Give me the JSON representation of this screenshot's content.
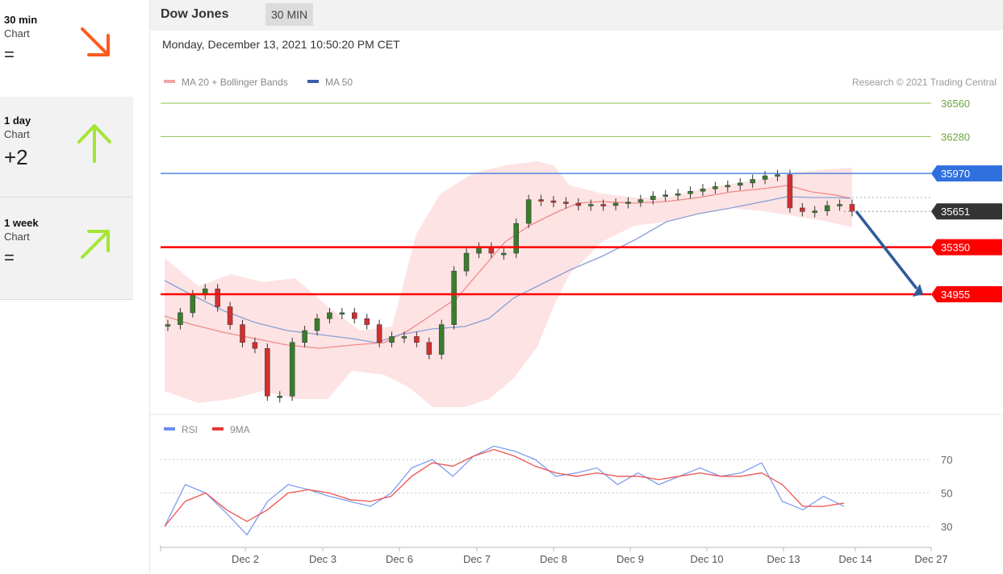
{
  "sidebar": {
    "items": [
      {
        "name": "30 min",
        "sub": "Chart",
        "score": "=",
        "arrow": "down-right-arrow-icon",
        "color": "#ff5a1f"
      },
      {
        "name": "1 day",
        "sub": "Chart",
        "score": "+2",
        "arrow": "up-arrow-icon",
        "color": "#a3e635"
      },
      {
        "name": "1 week",
        "sub": "Chart",
        "score": "=",
        "arrow": "up-right-arrow-icon",
        "color": "#a3e635"
      }
    ]
  },
  "header": {
    "title": "Dow Jones",
    "timeframe": "30 MIN",
    "datetime": "Monday, December 13, 2021 10:50:20 PM CET"
  },
  "legend": {
    "ma20": "MA 20 + Bollinger Bands",
    "ma50": "MA 50",
    "credit": "Research © 2021 Trading Central",
    "rsi": "RSI",
    "ma9": "9MA"
  },
  "chart_data": {
    "type": "candlestick",
    "x_labels": [
      "Dec 2",
      "Dec 3",
      "Dec 6",
      "Dec 7",
      "Dec 8",
      "Dec 9",
      "Dec 10",
      "Dec 13",
      "Dec 14",
      "Dec 27"
    ],
    "price_levels": [
      {
        "value": 36560,
        "label": "36560",
        "kind": "resistance-target",
        "color": "#8bc34a"
      },
      {
        "value": 36280,
        "label": "36280",
        "kind": "resistance-target",
        "color": "#8bc34a"
      },
      {
        "value": 35970,
        "label": "35970",
        "kind": "pivot",
        "color": "#2f6fde"
      },
      {
        "value": 35651,
        "label": "35651",
        "kind": "last-price",
        "color": "#333333"
      },
      {
        "value": 35350,
        "label": "35350",
        "kind": "support-target",
        "color": "#ff0000"
      },
      {
        "value": 34955,
        "label": "34955",
        "kind": "support-target",
        "color": "#ff0000"
      }
    ],
    "price_path": [
      34700,
      34800,
      34950,
      35000,
      34850,
      34700,
      34550,
      34500,
      34100,
      34100,
      34550,
      34650,
      34750,
      34800,
      34800,
      34750,
      34700,
      34550,
      34600,
      34600,
      34550,
      34450,
      34700,
      35150,
      35300,
      35350,
      35300,
      35300,
      35550,
      35750,
      35740,
      35730,
      35720,
      35700,
      35710,
      35700,
      35720,
      35730,
      35750,
      35780,
      35790,
      35800,
      35820,
      35840,
      35860,
      35870,
      35890,
      35920,
      35950,
      35960,
      35680,
      35650,
      35655,
      35700,
      35710,
      35651
    ],
    "rsi_levels": [
      30,
      50,
      70
    ],
    "rsi": [
      30,
      55,
      50,
      38,
      25,
      45,
      55,
      52,
      48,
      45,
      42,
      50,
      65,
      70,
      60,
      72,
      78,
      75,
      70,
      60,
      62,
      65,
      55,
      62,
      55,
      60,
      65,
      60,
      62,
      68,
      45,
      40,
      48,
      42
    ],
    "ma9": [
      30,
      45,
      50,
      40,
      33,
      40,
      50,
      52,
      50,
      46,
      45,
      48,
      60,
      68,
      66,
      72,
      76,
      72,
      66,
      62,
      60,
      62,
      60,
      60,
      58,
      60,
      62,
      60,
      60,
      62,
      55,
      42,
      42,
      44
    ]
  }
}
